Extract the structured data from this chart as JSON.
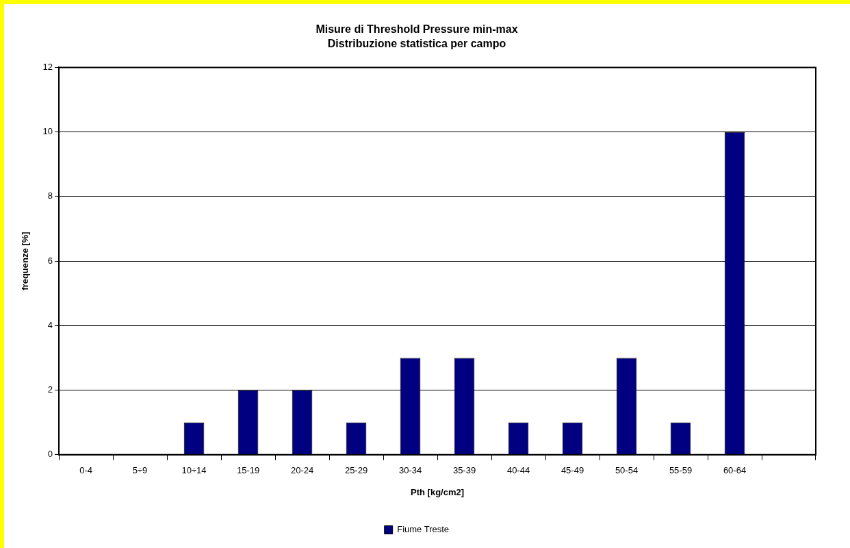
{
  "chart_data": {
    "type": "bar",
    "title": "Misure di Threshold Pressure min-max",
    "subtitle": "Distribuzione statistica per campo",
    "xlabel": "Pth [kg/cm2]",
    "ylabel": "frequenze [%]",
    "categories": [
      "0-4",
      "5÷9",
      "10÷14",
      "15-19",
      "20-24",
      "25-29",
      "30-34",
      "35-39",
      "40-44",
      "45-49",
      "50-54",
      "55-59",
      "60-64",
      null
    ],
    "series": [
      {
        "name": "Fiume Treste",
        "color": "#000080",
        "values": [
          0,
          0,
          1,
          2,
          2,
          1,
          3,
          3,
          1,
          1,
          3,
          1,
          10,
          null
        ]
      }
    ],
    "ylim": [
      0,
      12
    ],
    "yticks": [
      0,
      2,
      4,
      6,
      8,
      10,
      12
    ],
    "grid": "y",
    "legend": "bottom"
  }
}
